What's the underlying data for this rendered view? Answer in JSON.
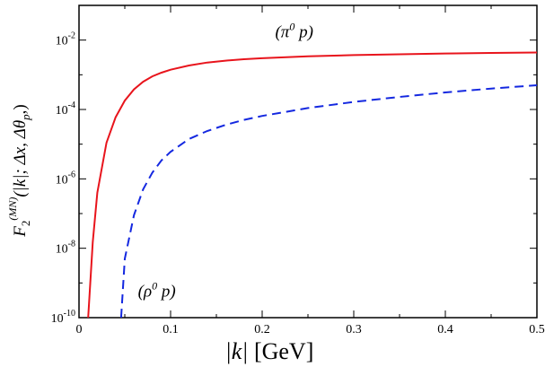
{
  "chart_data": {
    "type": "line",
    "title": "",
    "xlabel": "|k|    [GeV]",
    "ylabel": "F2(MN)(|k|; Δx, Δθp)",
    "xlim": [
      0,
      0.5
    ],
    "ylim": [
      1e-10,
      0.1
    ],
    "yscale": "log",
    "grid": false,
    "legend": "none",
    "x_ticks": [
      "0",
      "0.1",
      "0.2",
      "0.3",
      "0.4",
      "0.5"
    ],
    "x_tick_values": [
      0,
      0.1,
      0.2,
      0.3,
      0.4,
      0.5
    ],
    "y_ticks": [
      {
        "base": "10",
        "exp": "-10",
        "value": 1e-10
      },
      {
        "base": "10",
        "exp": "-8",
        "value": 1e-08
      },
      {
        "base": "10",
        "exp": "-6",
        "value": 1e-06
      },
      {
        "base": "10",
        "exp": "-4",
        "value": 0.0001
      },
      {
        "base": "10",
        "exp": "-2",
        "value": 0.01
      }
    ],
    "series": [
      {
        "label_text": "(π0p)",
        "color": "#e8141c",
        "dash": "solid",
        "x": [
          0.01,
          0.015,
          0.02,
          0.03,
          0.04,
          0.05,
          0.06,
          0.07,
          0.08,
          0.09,
          0.1,
          0.12,
          0.14,
          0.16,
          0.18,
          0.2,
          0.25,
          0.3,
          0.35,
          0.4,
          0.45,
          0.5
        ],
        "y": [
          1e-10,
          1.5e-08,
          4e-07,
          1.1e-05,
          6e-05,
          0.00018,
          0.00038,
          0.00063,
          0.0009,
          0.00115,
          0.0014,
          0.00185,
          0.00225,
          0.00255,
          0.0028,
          0.003,
          0.0034,
          0.0037,
          0.0039,
          0.0041,
          0.00425,
          0.0044
        ]
      },
      {
        "label_text": "(ρ0p)",
        "color": "#1428e0",
        "dash": "dashed",
        "x": [
          0.046,
          0.05,
          0.06,
          0.07,
          0.08,
          0.09,
          0.1,
          0.12,
          0.14,
          0.16,
          0.18,
          0.2,
          0.25,
          0.3,
          0.35,
          0.4,
          0.45,
          0.5
        ],
        "y": [
          1e-10,
          5e-09,
          9e-08,
          5e-07,
          1.5e-06,
          3.4e-06,
          6e-06,
          1.4e-05,
          2.4e-05,
          3.6e-05,
          5e-05,
          6.5e-05,
          0.00011,
          0.000165,
          0.00023,
          0.00031,
          0.0004,
          0.0005
        ]
      }
    ],
    "annotations": [
      {
        "text_prefix": "(π",
        "sup": "0",
        "text_suffix": " p)",
        "x": 0.235,
        "y": 0.012
      },
      {
        "text_prefix": "(ρ",
        "sup": "0",
        "text_suffix": " p)",
        "x": 0.085,
        "y": 4e-10
      }
    ],
    "ylabel_parts": {
      "main": "F",
      "sub": "2",
      "sup": "(MN)",
      "args": "(|k|; Δx, Δθ",
      "args_sub": "p",
      "args_end": ",)"
    },
    "xlabel_parts": {
      "var": "|k|",
      "unit": "[GeV]"
    }
  }
}
